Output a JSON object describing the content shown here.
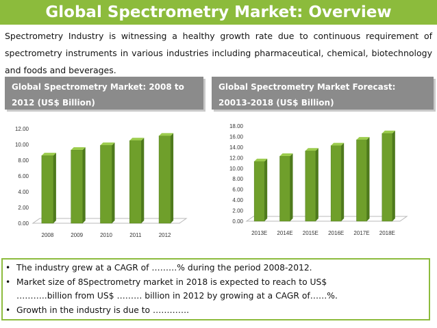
{
  "title": "Global Spectrometry Market: Overview",
  "intro": "Spectrometry Industry is witnessing a healthy growth rate due to continuous requirement of spectrometry instruments in various industries including pharmaceutical, chemical, biotechnology and foods and beverages.",
  "chart1_header": {
    "line1": "Global Spectrometry Market: 2008 to",
    "line2": "2012 (US$ Billion)"
  },
  "chart2_header": {
    "line1": "Global  Spectrometry Market Forecast:",
    "line2": "20013-2018 (US$ Billion)"
  },
  "colors": {
    "accent": "#8cbb3c",
    "header_bg": "#8b8b8b",
    "bar": "#6f9f2b"
  },
  "chart_data": [
    {
      "type": "bar",
      "categories": [
        "2008",
        "2009",
        "2010",
        "2011",
        "2012"
      ],
      "values": [
        8.6,
        9.3,
        9.9,
        10.5,
        11.1
      ],
      "ylim": [
        0,
        12
      ],
      "yticks": [
        "0.00",
        "2.00",
        "4.00",
        "6.00",
        "8.00",
        "10.00",
        "12.00"
      ],
      "grid": false
    },
    {
      "type": "bar",
      "categories": [
        "2013E",
        "2014E",
        "2015E",
        "2016E",
        "2017E",
        "2018E"
      ],
      "values": [
        11.3,
        12.3,
        13.3,
        14.3,
        15.4,
        16.6
      ],
      "ylim": [
        0,
        18
      ],
      "yticks": [
        "0.00",
        "2.00",
        "4.00",
        "6.00",
        "8.00",
        "10.00",
        "12.00",
        "14.00",
        "16.00",
        "18.00"
      ],
      "grid": false
    }
  ],
  "bullets": {
    "b1": "The industry grew at a CAGR of ………% during the period 2008-2012.",
    "b2": "Market size of 8Spectrometry market in 2018 is expected to reach to US$",
    "b2_cont": "………..billion from US$ ……… billion in 2012 by growing at a CAGR of……%.",
    "b3": "Growth in the industry is due to …………."
  }
}
